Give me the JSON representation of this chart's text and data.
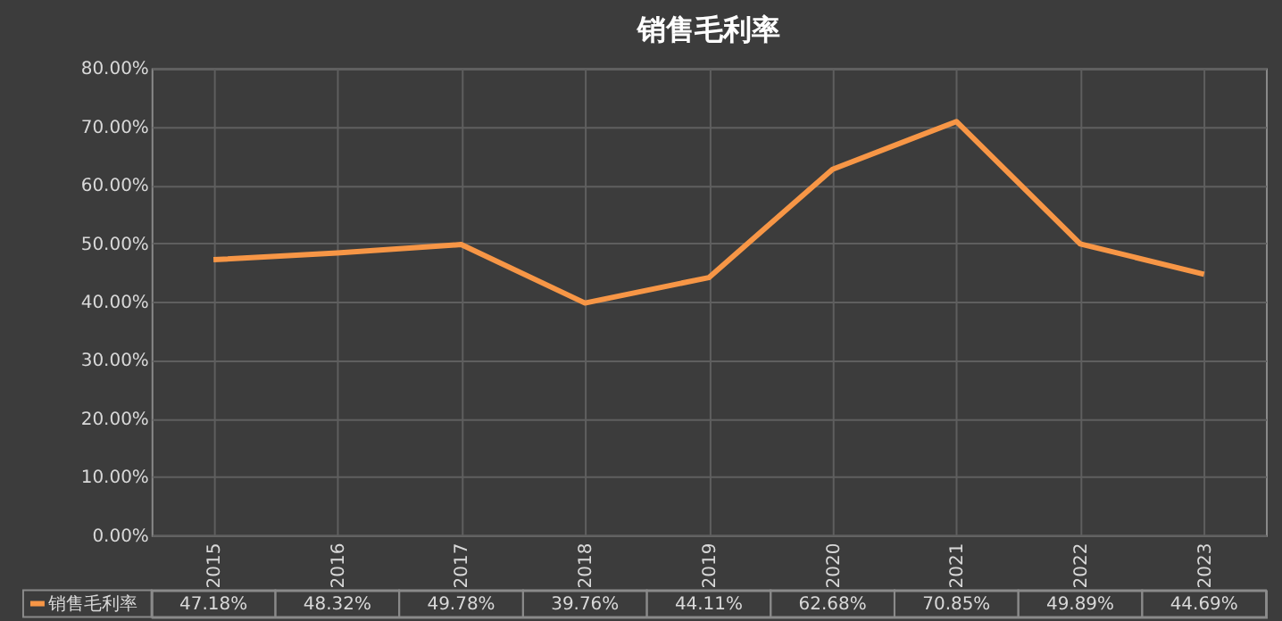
{
  "chart_data": {
    "type": "line",
    "title": "销售毛利率",
    "categories": [
      "2015",
      "2016",
      "2017",
      "2018",
      "2019",
      "2020",
      "2021",
      "2022",
      "2023"
    ],
    "series": [
      {
        "name": "销售毛利率",
        "color": "#f79646",
        "values": [
          47.18,
          48.32,
          49.78,
          39.76,
          44.11,
          62.68,
          70.85,
          49.89,
          44.69
        ],
        "value_labels": [
          "47.18%",
          "48.32%",
          "49.78%",
          "39.76%",
          "44.11%",
          "62.68%",
          "70.85%",
          "49.89%",
          "44.69%"
        ]
      }
    ],
    "ylim": [
      0,
      80
    ],
    "yticks": [
      {
        "value": 0,
        "label": "0.00%"
      },
      {
        "value": 10,
        "label": "10.00%"
      },
      {
        "value": 20,
        "label": "20.00%"
      },
      {
        "value": 30,
        "label": "30.00%"
      },
      {
        "value": 40,
        "label": "40.00%"
      },
      {
        "value": 50,
        "label": "50.00%"
      },
      {
        "value": 60,
        "label": "60.00%"
      },
      {
        "value": 70,
        "label": "70.00%"
      },
      {
        "value": 80,
        "label": "80.00%"
      }
    ],
    "grid": true,
    "legend": "bottom left",
    "marker": "none",
    "line_style": "solid"
  }
}
